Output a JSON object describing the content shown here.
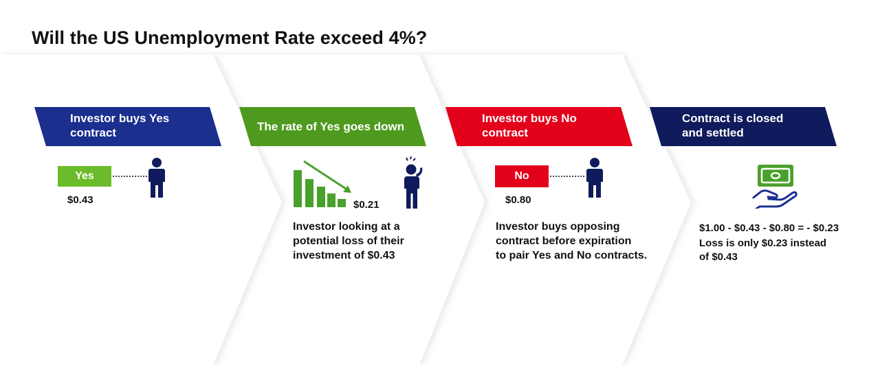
{
  "title": "Will the US Unemployment Rate exceed 4%?",
  "colors": {
    "blue": "#1B2F8F",
    "green": "#4E9A1E",
    "green_light": "#6CBB2A",
    "red": "#E3001B",
    "navy": "#0F1B5C",
    "bar_green": "#4AA02C"
  },
  "steps": [
    {
      "banner": "Investor buys Yes contract",
      "banner_lines": [
        "Investor buys Yes",
        "contract"
      ],
      "pill": "Yes",
      "price": "$0.43"
    },
    {
      "banner": "The rate of Yes goes down",
      "price": "$0.21",
      "description_lines": [
        "Investor looking at a",
        "potential loss of their",
        "investment of $0.43"
      ]
    },
    {
      "banner_lines": [
        "Investor buys No",
        "contract"
      ],
      "pill": "No",
      "price": "$0.80",
      "description_lines": [
        "Investor buys opposing",
        "contract before expiration",
        "to pair Yes and No contracts."
      ]
    },
    {
      "banner_lines": [
        "Contract is closed",
        "and settled"
      ],
      "formula": "$1.00 - $0.43 - $0.80 = - $0.23",
      "description_lines": [
        "Loss is only $0.23 instead",
        "of $0.43"
      ]
    }
  ]
}
